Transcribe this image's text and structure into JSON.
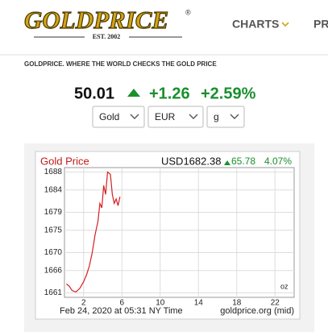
{
  "header": {
    "logo": "GOLDPRICE",
    "registered": "®",
    "established": "EST. 2002",
    "nav": [
      "CHARTS",
      "PR"
    ]
  },
  "tagline": "GOLDPRICE.  WHERE THE WORLD CHECKS THE GOLD PRICE",
  "quote": {
    "price": "50.01",
    "change": "+1.26",
    "change_pct": "+2.59%"
  },
  "selectors": [
    "Gold",
    "EUR",
    "g"
  ],
  "chart_data": {
    "type": "line",
    "title": "Gold Price",
    "price": "USD1682.38",
    "change": "65.78",
    "change_pct": "4.07%",
    "unit": "oz",
    "timestamp": "Feb 24, 2020 at 05:31 NY Time",
    "source": "goldprice.org (mid)",
    "x": [
      0.2,
      0.5,
      0.8,
      1.2,
      1.6,
      2.0,
      2.3,
      2.6,
      2.9,
      3.2,
      3.5,
      3.7,
      3.9,
      4.1,
      4.3,
      4.5,
      4.8,
      5.0,
      5.2,
      5.4,
      5.6,
      5.8
    ],
    "series": [
      {
        "name": "Gold Price",
        "color": "#d42020",
        "values": [
          1663,
          1662.5,
          1661.5,
          1661.2,
          1662,
          1663.5,
          1665,
          1667,
          1670,
          1674,
          1677,
          1681,
          1680,
          1685,
          1683,
          1688,
          1687.5,
          1683,
          1681,
          1682,
          1680.5,
          1682.5
        ]
      }
    ],
    "xlim": [
      0,
      24
    ],
    "xticks": [
      2,
      6,
      10,
      14,
      18,
      22
    ],
    "ylim": [
      1660,
      1689
    ],
    "yticks": [
      1661,
      1666,
      1670,
      1675,
      1679,
      1684,
      1688
    ],
    "grid": true
  }
}
